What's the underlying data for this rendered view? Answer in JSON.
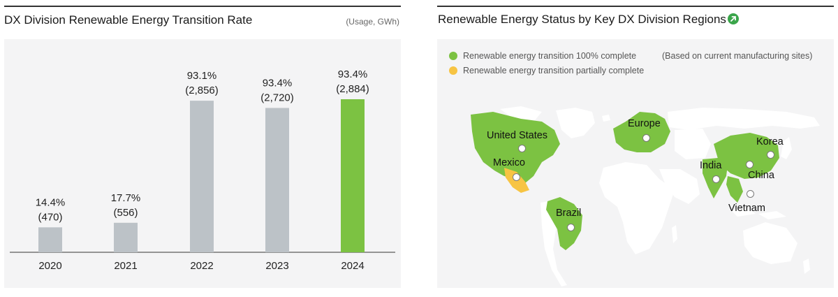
{
  "left": {
    "title": "DX Division Renewable Energy Transition Rate",
    "unit": "(Usage, GWh)"
  },
  "chart_data": {
    "type": "bar",
    "categories": [
      "2020",
      "2021",
      "2022",
      "2023",
      "2024"
    ],
    "values": [
      470,
      556,
      2856,
      2720,
      2884
    ],
    "rates": [
      14.4,
      17.7,
      93.1,
      93.4,
      93.4
    ],
    "rate_labels": [
      "14.4%",
      "17.7%",
      "93.1%",
      "93.4%",
      "93.4%"
    ],
    "value_labels": [
      "(470)",
      "(556)",
      "(2,856)",
      "(2,720)",
      "(2,884)"
    ],
    "bar_colors": [
      "#bcc2c7",
      "#bcc2c7",
      "#bcc2c7",
      "#bcc2c7",
      "#7cc242"
    ],
    "ylim": [
      0,
      100
    ]
  },
  "right": {
    "title": "Renewable Energy Status by Key DX Division Regions",
    "link_icon": "external-link-arrow-icon",
    "legend": [
      {
        "label": "Renewable energy transition 100% complete",
        "color": "#7cc242"
      },
      {
        "label": "Renewable energy transition partially complete",
        "color": "#f7c443"
      }
    ],
    "legend_note": "(Based on current manufacturing sites)",
    "regions": {
      "us": "United States",
      "mexico": "Mexico",
      "brazil": "Brazil",
      "europe": "Europe",
      "india": "India",
      "china": "China",
      "korea": "Korea",
      "vietnam": "Vietnam"
    }
  }
}
